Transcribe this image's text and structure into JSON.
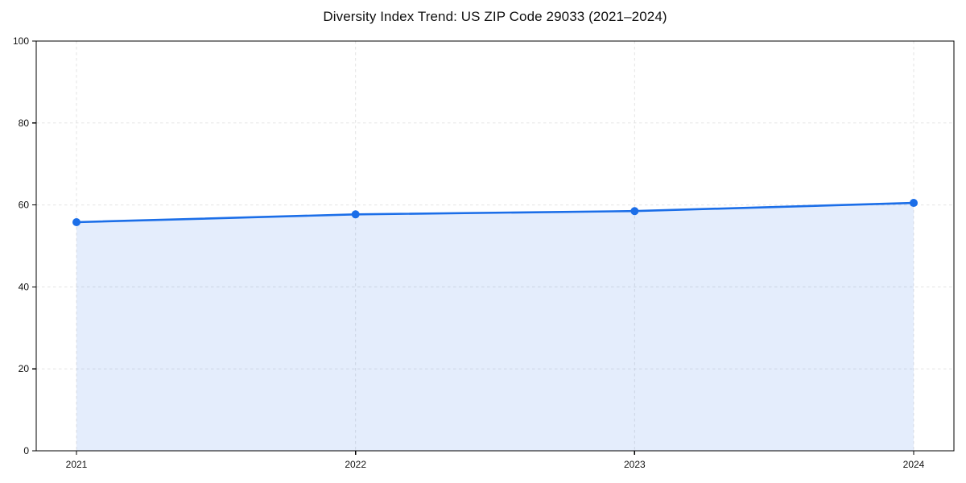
{
  "chart_data": {
    "type": "line",
    "title": "Diversity Index Trend: US ZIP Code 29033 (2021–2024)",
    "categories": [
      "2021",
      "2022",
      "2023",
      "2024"
    ],
    "series": [
      {
        "name": "Diversity Index",
        "values": [
          55.8,
          57.7,
          58.5,
          60.5
        ]
      }
    ],
    "xlabel": "",
    "ylabel": "",
    "ylim": [
      0,
      100
    ],
    "yticks": [
      0,
      20,
      40,
      60,
      80,
      100
    ],
    "grid": true,
    "grid_style": "dashed",
    "legend_position": "none",
    "area_fill": true,
    "markers": true,
    "colors": {
      "line": "#1b6ee8",
      "marker": "#1b6ee8",
      "fill": "rgba(31,110,230,0.12)",
      "grid": "#e3e3e3",
      "spine": "#000000",
      "text": "#111111",
      "background": "#ffffff"
    }
  }
}
